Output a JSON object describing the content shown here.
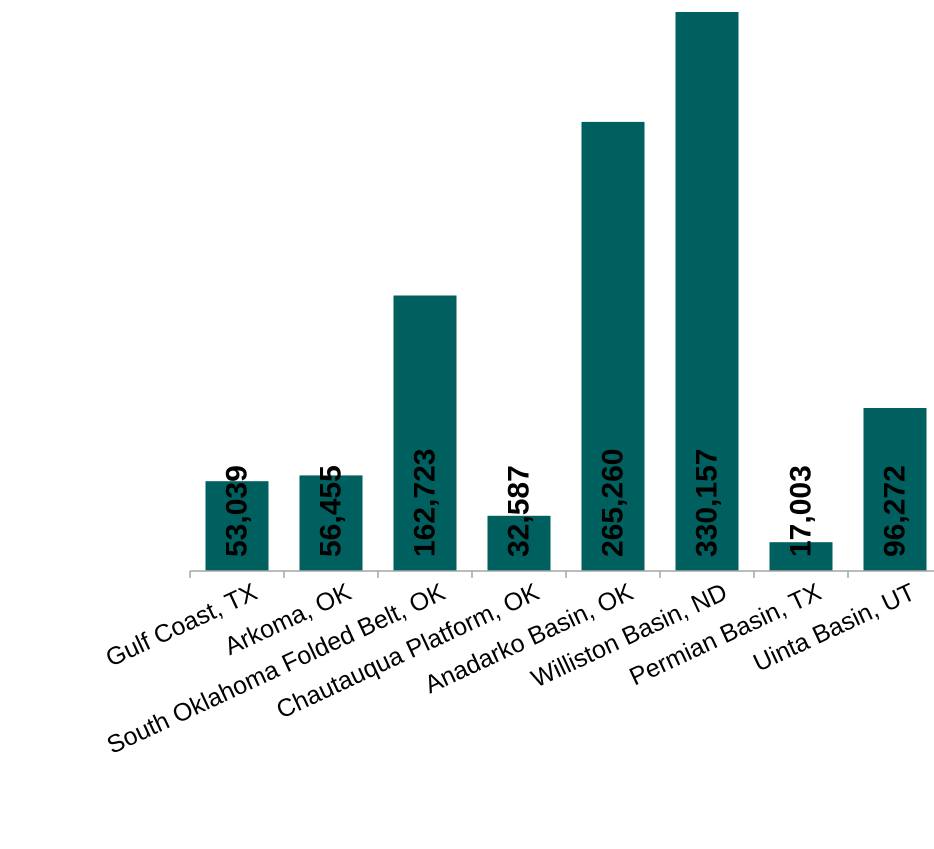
{
  "chart_data": {
    "type": "bar",
    "title": "",
    "xlabel": "",
    "ylabel": "",
    "categories": [
      "Gulf Coast, TX",
      "Arkoma, OK",
      "South Oklahoma Folded Belt, OK",
      "Chautauqua Platform, OK",
      "Anadarko Basin, OK",
      "Williston Basin, ND",
      "Permian Basin, TX",
      "Uinta Basin, UT"
    ],
    "values": [
      53039,
      56455,
      162723,
      32587,
      265260,
      330157,
      17003,
      96272
    ],
    "labels": [
      "53,039",
      "56,455",
      "162,723",
      "32,587",
      "265,260",
      "330,157",
      "17,003",
      "96,272"
    ],
    "ylim": [
      0,
      330157
    ],
    "grid": false,
    "legend": "none",
    "bar_color": "#005f5f",
    "axis_color": "#a6a6a6"
  }
}
